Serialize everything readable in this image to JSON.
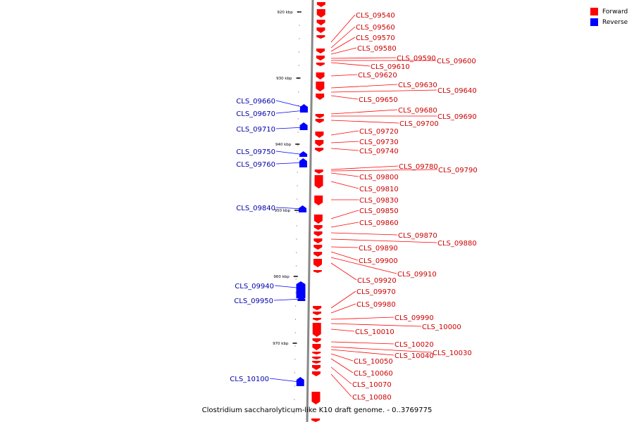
{
  "legend": [
    {
      "label": "Forward",
      "color": "#ff0000"
    },
    {
      "label": "Reverse",
      "color": "#0000ff"
    }
  ],
  "caption": "Clostridium saccharolyticum-like K10 draft genome. - 0..3769775",
  "colors": {
    "forward": "#ff0000",
    "reverse": "#0000ff",
    "axis": "#888888",
    "forward_label": "#cc0000",
    "reverse_label": "#0000aa"
  },
  "scale_labels": [
    "920 kbp",
    "930 kbp",
    "940 kbp",
    "950 kbp",
    "960 kbp",
    "970 kbp"
  ],
  "forward_genes": [
    "CLS_09540",
    "CLS_09560",
    "CLS_09570",
    "CLS_09580",
    "CLS_09590",
    "CLS_09600",
    "CLS_09610",
    "CLS_09620",
    "CLS_09630",
    "CLS_09640",
    "CLS_09650",
    "CLS_09680",
    "CLS_09690",
    "CLS_09700",
    "CLS_09720",
    "CLS_09730",
    "CLS_09740",
    "CLS_09780",
    "CLS_09790",
    "CLS_09800",
    "CLS_09810",
    "CLS_09830",
    "CLS_09850",
    "CLS_09860",
    "CLS_09870",
    "CLS_09880",
    "CLS_09890",
    "CLS_09900",
    "CLS_09910",
    "CLS_09920",
    "CLS_09970",
    "CLS_09980",
    "CLS_09990",
    "CLS_10000",
    "CLS_10010",
    "CLS_10020",
    "CLS_10030",
    "CLS_10040",
    "CLS_10050",
    "CLS_10060",
    "CLS_10070",
    "CLS_10080"
  ],
  "reverse_genes": [
    "CLS_09660",
    "CLS_09670",
    "CLS_09710",
    "CLS_09750",
    "CLS_09760",
    "CLS_09840",
    "CLS_09940",
    "CLS_09950",
    "CLS_10100"
  ]
}
